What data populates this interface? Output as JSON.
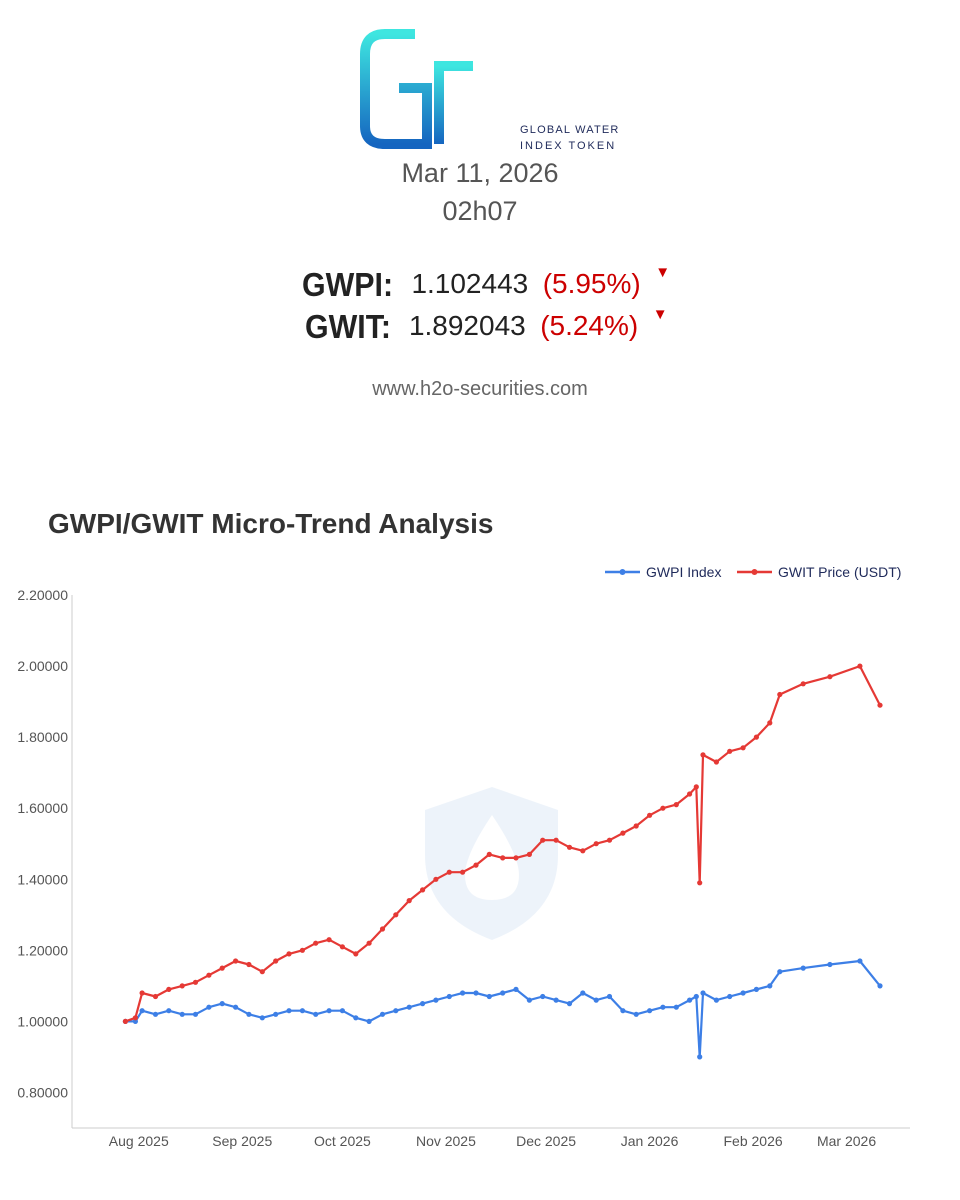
{
  "header": {
    "logo_text": "GWIT",
    "logo_tagline_1": "GLOBAL WATER",
    "logo_tagline_2": "INDEX TOKEN",
    "date": "Mar 11, 2026",
    "time": "02h07",
    "tickers": [
      {
        "label": "GWPI:",
        "value": "1.102443",
        "change": "(5.95%)",
        "direction": "down"
      },
      {
        "label": "GWIT:",
        "value": "1.892043",
        "change": "(5.24%)",
        "direction": "down"
      }
    ],
    "website": "www.h2o-securities.com"
  },
  "colors": {
    "gwpi": "#3d7fe6",
    "gwit": "#e53935",
    "negative": "#cc0000",
    "logo_gradient_top": "#3ee6e0",
    "logo_gradient_bottom": "#1565c0"
  },
  "chart_data": {
    "type": "line",
    "title": "GWPI/GWIT Micro-Trend Analysis",
    "x_type": "date",
    "x_range": [
      "2025-07-12",
      "2026-03-20"
    ],
    "ylim": [
      0.7,
      2.2
    ],
    "yticks": [
      "2.20000",
      "2.00000",
      "1.80000",
      "1.60000",
      "1.40000",
      "1.20000",
      "1.00000",
      "0.80000"
    ],
    "xticks": [
      "Aug 2025",
      "Sep 2025",
      "Oct 2025",
      "Nov 2025",
      "Dec 2025",
      "Jan 2026",
      "Feb 2026",
      "Mar 2026"
    ],
    "xtick_dates": [
      "2025-08-01",
      "2025-09-01",
      "2025-10-01",
      "2025-11-01",
      "2025-12-01",
      "2026-01-01",
      "2026-02-01",
      "2026-03-01"
    ],
    "grid": false,
    "legend_position": "top-right",
    "series": [
      {
        "name": "GWPI Index",
        "x": [
          "2025-07-28",
          "2025-07-31",
          "2025-08-02",
          "2025-08-06",
          "2025-08-10",
          "2025-08-14",
          "2025-08-18",
          "2025-08-22",
          "2025-08-26",
          "2025-08-30",
          "2025-09-03",
          "2025-09-07",
          "2025-09-11",
          "2025-09-15",
          "2025-09-19",
          "2025-09-23",
          "2025-09-27",
          "2025-10-01",
          "2025-10-05",
          "2025-10-09",
          "2025-10-13",
          "2025-10-17",
          "2025-10-21",
          "2025-10-25",
          "2025-10-29",
          "2025-11-02",
          "2025-11-06",
          "2025-11-10",
          "2025-11-14",
          "2025-11-18",
          "2025-11-22",
          "2025-11-26",
          "2025-11-30",
          "2025-12-04",
          "2025-12-08",
          "2025-12-12",
          "2025-12-16",
          "2025-12-20",
          "2025-12-24",
          "2025-12-28",
          "2026-01-01",
          "2026-01-05",
          "2026-01-09",
          "2026-01-13",
          "2026-01-15",
          "2026-01-16",
          "2026-01-17",
          "2026-01-21",
          "2026-01-25",
          "2026-01-29",
          "2026-02-02",
          "2026-02-06",
          "2026-02-09",
          "2026-02-16",
          "2026-02-24",
          "2026-03-05",
          "2026-03-11"
        ],
        "values": [
          1.0,
          1.0,
          1.03,
          1.02,
          1.03,
          1.02,
          1.02,
          1.04,
          1.05,
          1.04,
          1.02,
          1.01,
          1.02,
          1.03,
          1.03,
          1.02,
          1.03,
          1.03,
          1.01,
          1.0,
          1.02,
          1.03,
          1.04,
          1.05,
          1.06,
          1.07,
          1.08,
          1.08,
          1.07,
          1.08,
          1.09,
          1.06,
          1.07,
          1.06,
          1.05,
          1.08,
          1.06,
          1.07,
          1.03,
          1.02,
          1.03,
          1.04,
          1.04,
          1.06,
          1.07,
          0.9,
          1.08,
          1.06,
          1.07,
          1.08,
          1.09,
          1.1,
          1.14,
          1.15,
          1.16,
          1.17,
          1.1
        ]
      },
      {
        "name": "GWIT Price (USDT)",
        "x": [
          "2025-07-28",
          "2025-07-31",
          "2025-08-02",
          "2025-08-06",
          "2025-08-10",
          "2025-08-14",
          "2025-08-18",
          "2025-08-22",
          "2025-08-26",
          "2025-08-30",
          "2025-09-03",
          "2025-09-07",
          "2025-09-11",
          "2025-09-15",
          "2025-09-19",
          "2025-09-23",
          "2025-09-27",
          "2025-10-01",
          "2025-10-05",
          "2025-10-09",
          "2025-10-13",
          "2025-10-17",
          "2025-10-21",
          "2025-10-25",
          "2025-10-29",
          "2025-11-02",
          "2025-11-06",
          "2025-11-10",
          "2025-11-14",
          "2025-11-18",
          "2025-11-22",
          "2025-11-26",
          "2025-11-30",
          "2025-12-04",
          "2025-12-08",
          "2025-12-12",
          "2025-12-16",
          "2025-12-20",
          "2025-12-24",
          "2025-12-28",
          "2026-01-01",
          "2026-01-05",
          "2026-01-09",
          "2026-01-13",
          "2026-01-15",
          "2026-01-16",
          "2026-01-17",
          "2026-01-21",
          "2026-01-25",
          "2026-01-29",
          "2026-02-02",
          "2026-02-06",
          "2026-02-09",
          "2026-02-16",
          "2026-02-24",
          "2026-03-05",
          "2026-03-11"
        ],
        "values": [
          1.0,
          1.01,
          1.08,
          1.07,
          1.09,
          1.1,
          1.11,
          1.13,
          1.15,
          1.17,
          1.16,
          1.14,
          1.17,
          1.19,
          1.2,
          1.22,
          1.23,
          1.21,
          1.19,
          1.22,
          1.26,
          1.3,
          1.34,
          1.37,
          1.4,
          1.42,
          1.42,
          1.44,
          1.47,
          1.46,
          1.46,
          1.47,
          1.51,
          1.51,
          1.49,
          1.48,
          1.5,
          1.51,
          1.53,
          1.55,
          1.58,
          1.6,
          1.61,
          1.64,
          1.66,
          1.39,
          1.75,
          1.73,
          1.76,
          1.77,
          1.8,
          1.84,
          1.92,
          1.95,
          1.97,
          2.0,
          1.89
        ]
      }
    ]
  }
}
